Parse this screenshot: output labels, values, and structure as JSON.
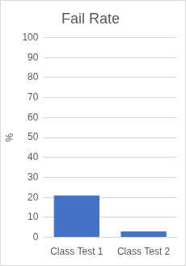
{
  "chart_data": {
    "type": "bar",
    "title": "Fail Rate",
    "y_label": "%",
    "categories": [
      "Class Test 1",
      "Class Test 2"
    ],
    "values": [
      21,
      3
    ],
    "color": "#4472c4",
    "ylim": [
      0,
      100
    ],
    "yticks": [
      0,
      10,
      20,
      30,
      40,
      50,
      60,
      70,
      80,
      90,
      100
    ],
    "grid": true
  }
}
